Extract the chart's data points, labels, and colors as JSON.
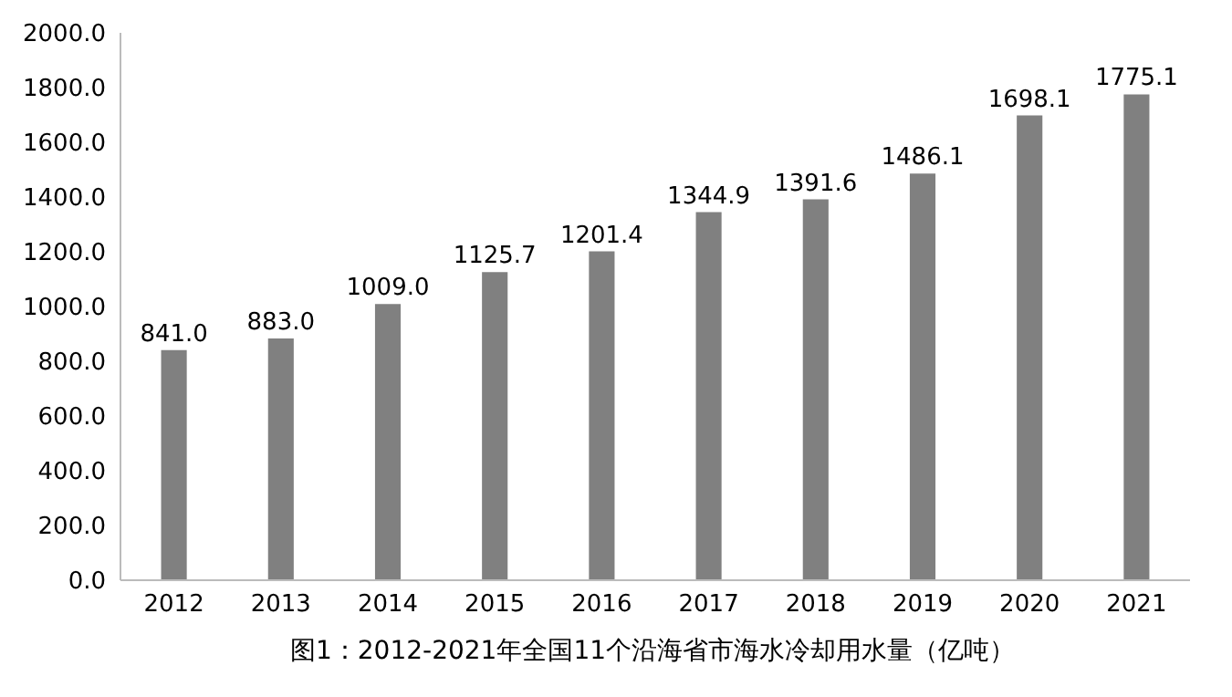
{
  "chart_data": {
    "type": "bar",
    "title": "图1：2012-2021年全国11个沿海省市海水冷却用水量（亿吨）",
    "categories": [
      "2012",
      "2013",
      "2014",
      "2015",
      "2016",
      "2017",
      "2018",
      "2019",
      "2020",
      "2021"
    ],
    "values": [
      841.0,
      883.0,
      1009.0,
      1125.7,
      1201.4,
      1344.9,
      1391.6,
      1486.1,
      1698.1,
      1775.1
    ],
    "value_labels": [
      "841.0",
      "883.0",
      "1009.0",
      "1125.7",
      "1201.4",
      "1344.9",
      "1391.6",
      "1486.1",
      "1698.1",
      "1775.1"
    ],
    "color": "#808080",
    "ylim": [
      0,
      2000
    ],
    "yticks": [
      {
        "value": 0,
        "label": "0.0"
      },
      {
        "value": 200,
        "label": "200.0"
      },
      {
        "value": 400,
        "label": "400.0"
      },
      {
        "value": 600,
        "label": "600.0"
      },
      {
        "value": 800,
        "label": "800.0"
      },
      {
        "value": 1000,
        "label": "1000.0"
      },
      {
        "value": 1200,
        "label": "1200.0"
      },
      {
        "value": 1400,
        "label": "1400.0"
      },
      {
        "value": 1600,
        "label": "1600.0"
      },
      {
        "value": 1800,
        "label": "1800.0"
      },
      {
        "value": 2000,
        "label": "2000.0"
      }
    ],
    "grid": false
  }
}
